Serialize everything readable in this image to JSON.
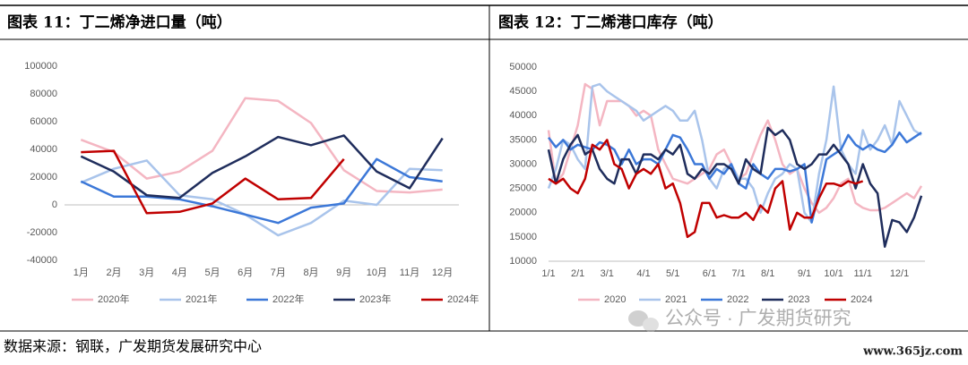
{
  "chart_data": [
    {
      "type": "line",
      "title": "图表 11：丁二烯净进口量（吨）",
      "categories": [
        "1月",
        "2月",
        "3月",
        "4月",
        "5月",
        "6月",
        "7月",
        "8月",
        "9月",
        "10月",
        "11月",
        "12月"
      ],
      "ylim": [
        -40000,
        100000
      ],
      "yticks": [
        -40000,
        -20000,
        0,
        20000,
        40000,
        60000,
        80000,
        100000
      ],
      "series": [
        {
          "name": "2020年",
          "color": "#f4b6c2",
          "values": [
            47000,
            38000,
            19000,
            24000,
            39000,
            77000,
            75000,
            59000,
            25000,
            10000,
            9000,
            11000
          ]
        },
        {
          "name": "2021年",
          "color": "#a9c4eb",
          "values": [
            16000,
            26000,
            32000,
            7000,
            4000,
            -7000,
            -22000,
            -13000,
            3000,
            0,
            26000,
            25000
          ]
        },
        {
          "name": "2022年",
          "color": "#3c78d8",
          "values": [
            17000,
            6000,
            6000,
            4000,
            -1000,
            -7000,
            -13000,
            -2000,
            1000,
            33000,
            20000,
            17000
          ]
        },
        {
          "name": "2023年",
          "color": "#1f2d5c",
          "values": [
            35000,
            24000,
            7000,
            5000,
            23000,
            35000,
            49000,
            43000,
            50000,
            24000,
            12000,
            48000
          ]
        },
        {
          "name": "2024年",
          "color": "#c00000",
          "values": [
            38000,
            39000,
            -6000,
            -5000,
            1000,
            19000,
            4000,
            5000,
            33000,
            null,
            null,
            null
          ]
        }
      ]
    },
    {
      "type": "line",
      "title": "图表 12：丁二烯港口库存（吨）",
      "categories": [
        "1/1",
        null,
        null,
        null,
        "2/1",
        null,
        null,
        null,
        "3/1",
        null,
        null,
        null,
        null,
        "4/1",
        null,
        null,
        null,
        "5/1",
        null,
        null,
        null,
        null,
        "6/1",
        null,
        null,
        null,
        "7/1",
        null,
        null,
        null,
        "8/1",
        null,
        null,
        null,
        null,
        "9/1",
        null,
        null,
        null,
        "10/1",
        null,
        null,
        null,
        "11/1",
        null,
        null,
        null,
        null,
        "12/1",
        null,
        null,
        null
      ],
      "ylim": [
        10000,
        50000
      ],
      "yticks": [
        10000,
        15000,
        20000,
        25000,
        30000,
        35000,
        40000,
        45000,
        50000
      ],
      "series": [
        {
          "name": "2020",
          "color": "#f4b6c2",
          "values": [
            37000,
            26000,
            28000,
            33000,
            38000,
            46500,
            45500,
            38000,
            43000,
            43000,
            43000,
            42000,
            40000,
            41000,
            40000,
            33000,
            30000,
            27000,
            26500,
            26000,
            27000,
            28000,
            29000,
            32000,
            33000,
            30000,
            27000,
            28000,
            32000,
            36000,
            39000,
            35000,
            30000,
            28000,
            29000,
            25000,
            22000,
            20000,
            21000,
            23000,
            26000,
            27000,
            22000,
            21000,
            20500,
            20500,
            21000,
            22000,
            23000,
            24000,
            23000,
            25500
          ]
        },
        {
          "name": "2021",
          "color": "#a9c4eb",
          "values": [
            25000,
            29000,
            35000,
            34000,
            31000,
            29000,
            46000,
            46500,
            45000,
            44000,
            43000,
            42000,
            41000,
            39000,
            40000,
            41000,
            42000,
            41000,
            39000,
            39000,
            41000,
            35000,
            27000,
            25000,
            29000,
            30000,
            27000,
            27000,
            25000,
            20000,
            24000,
            27000,
            28000,
            30000,
            29000,
            20000,
            18000,
            28000,
            35000,
            46000,
            33000,
            30000,
            28000,
            37000,
            33000,
            35000,
            38000,
            34000,
            43000,
            40000,
            37000,
            36000
          ]
        },
        {
          "name": "2022",
          "color": "#3c78d8",
          "values": [
            35500,
            33500,
            35000,
            33000,
            34000,
            33500,
            33000,
            34500,
            34000,
            33000,
            30000,
            33000,
            30000,
            31000,
            31000,
            30000,
            33000,
            36000,
            35500,
            33000,
            30000,
            30000,
            27000,
            29000,
            28000,
            30000,
            26000,
            25000,
            30000,
            28000,
            27000,
            29000,
            29000,
            28500,
            29000,
            30000,
            18000,
            24000,
            31000,
            32000,
            33000,
            36000,
            34000,
            33000,
            34000,
            33000,
            32500,
            34000,
            36500,
            34500,
            35500,
            36500
          ]
        },
        {
          "name": "2023",
          "color": "#1f2d5c",
          "values": [
            33000,
            26000,
            31000,
            34000,
            36000,
            32000,
            33000,
            29000,
            27000,
            26000,
            31000,
            31000,
            28000,
            32000,
            32000,
            31000,
            33000,
            32000,
            34000,
            28000,
            27000,
            29000,
            28000,
            30000,
            30000,
            29000,
            26000,
            31000,
            29000,
            28000,
            37500,
            36000,
            37000,
            35000,
            30000,
            29000,
            30000,
            32000,
            32000,
            34000,
            32000,
            30000,
            25000,
            30000,
            26000,
            24000,
            13000,
            18500,
            18000,
            16000,
            19000,
            23500
          ]
        },
        {
          "name": "2024",
          "color": "#c00000",
          "values": [
            27000,
            26000,
            27000,
            25000,
            24000,
            27000,
            34000,
            33000,
            35000,
            30000,
            29000,
            25000,
            28000,
            29000,
            28000,
            30000,
            25000,
            26000,
            22000,
            15000,
            16000,
            22000,
            22000,
            19000,
            19500,
            19000,
            19000,
            20000,
            18500,
            21500,
            20000,
            25000,
            26500,
            16500,
            20000,
            19000,
            19000,
            23000,
            26000,
            26000,
            25500,
            26500,
            26000,
            26500,
            null,
            null,
            null,
            null,
            null,
            null,
            null,
            null
          ]
        }
      ]
    }
  ],
  "source": "数据来源：钢联，广发期货发展研究中心",
  "watermark": "公众号 · 广发期货研究",
  "site": "www.365jz.com"
}
